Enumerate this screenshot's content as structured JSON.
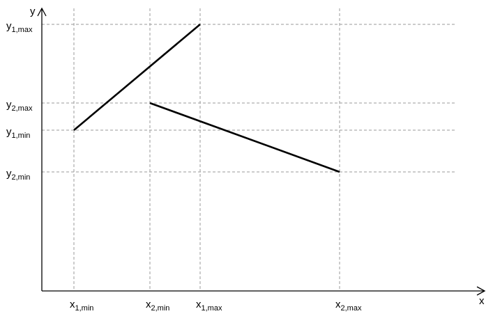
{
  "axes": {
    "x_label": "x",
    "y_label": "y"
  },
  "x_ticks": [
    {
      "id": "x1-min",
      "base": "x",
      "sub": "1,min"
    },
    {
      "id": "x2-min",
      "base": "x",
      "sub": "2,min"
    },
    {
      "id": "x1-max",
      "base": "x",
      "sub": "1,max"
    },
    {
      "id": "x2-max",
      "base": "x",
      "sub": "2,max"
    }
  ],
  "y_ticks": [
    {
      "id": "y1-max",
      "base": "y",
      "sub": "1,max"
    },
    {
      "id": "y2-max",
      "base": "y",
      "sub": "2,max"
    },
    {
      "id": "y1-min",
      "base": "y",
      "sub": "1,min"
    },
    {
      "id": "y2-min",
      "base": "y",
      "sub": "2,min"
    }
  ],
  "segments": [
    {
      "name": "segment-1",
      "from": {
        "x": "x1-min",
        "y": "y1-min"
      },
      "to": {
        "x": "x1-max",
        "y": "y1-max"
      }
    },
    {
      "name": "segment-2",
      "from": {
        "x": "x2-min",
        "y": "y2-max"
      },
      "to": {
        "x": "x2-max",
        "y": "y2-min"
      }
    }
  ],
  "colors": {
    "line": "#000000",
    "guide": "#9a9a9a",
    "background": "#ffffff"
  }
}
